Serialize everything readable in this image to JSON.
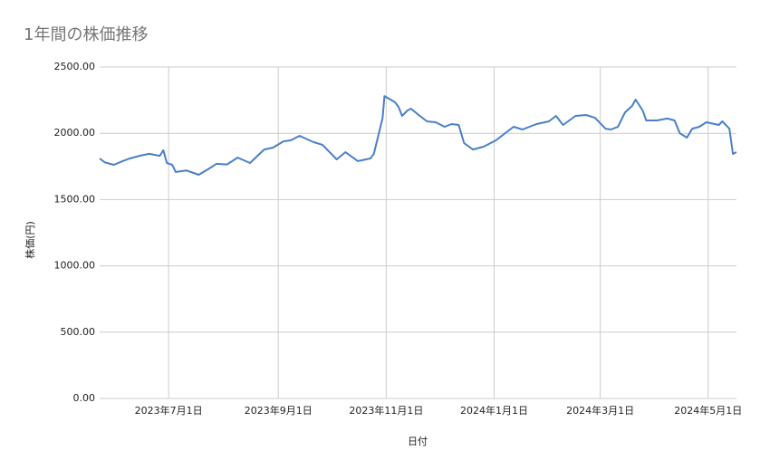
{
  "chart_data": {
    "type": "line",
    "title": "1年間の株価推移",
    "x_label": "日付",
    "y_label": "株価(円)",
    "grid": true,
    "x": [
      "2023-05-23",
      "2023-05-26",
      "2023-05-31",
      "2023-06-05",
      "2023-06-09",
      "2023-06-15",
      "2023-06-20",
      "2023-06-26",
      "2023-06-28",
      "2023-06-30",
      "2023-07-03",
      "2023-07-05",
      "2023-07-11",
      "2023-07-18",
      "2023-07-24",
      "2023-07-28",
      "2023-08-03",
      "2023-08-09",
      "2023-08-16",
      "2023-08-24",
      "2023-08-29",
      "2023-09-04",
      "2023-09-08",
      "2023-09-13",
      "2023-09-21",
      "2023-09-26",
      "2023-10-04",
      "2023-10-09",
      "2023-10-16",
      "2023-10-23",
      "2023-10-25",
      "2023-10-30",
      "2023-10-31",
      "2023-11-06",
      "2023-11-08",
      "2023-11-10",
      "2023-11-13",
      "2023-11-15",
      "2023-11-20",
      "2023-11-24",
      "2023-11-29",
      "2023-12-04",
      "2023-12-08",
      "2023-12-12",
      "2023-12-15",
      "2023-12-20",
      "2023-12-26",
      "2024-01-02",
      "2024-01-08",
      "2024-01-12",
      "2024-01-17",
      "2024-01-25",
      "2024-02-01",
      "2024-02-05",
      "2024-02-09",
      "2024-02-16",
      "2024-02-22",
      "2024-02-27",
      "2024-03-04",
      "2024-03-07",
      "2024-03-11",
      "2024-03-15",
      "2024-03-19",
      "2024-03-21",
      "2024-03-25",
      "2024-03-27",
      "2024-04-02",
      "2024-04-08",
      "2024-04-12",
      "2024-04-15",
      "2024-04-19",
      "2024-04-22",
      "2024-04-26",
      "2024-04-30",
      "2024-05-07",
      "2024-05-09",
      "2024-05-13",
      "2024-05-15",
      "2024-05-17"
    ],
    "series": [
      {
        "color": "#4a7fc9",
        "values": [
          1810,
          1780,
          1762,
          1790,
          1810,
          1831,
          1845,
          1830,
          1872,
          1776,
          1762,
          1708,
          1720,
          1687,
          1735,
          1770,
          1765,
          1817,
          1776,
          1878,
          1892,
          1940,
          1947,
          1981,
          1933,
          1913,
          1803,
          1858,
          1790,
          1810,
          1844,
          2117,
          2281,
          2234,
          2199,
          2131,
          2172,
          2186,
          2131,
          2090,
          2083,
          2049,
          2070,
          2063,
          1926,
          1878,
          1899,
          1947,
          2008,
          2049,
          2029,
          2070,
          2090,
          2131,
          2063,
          2131,
          2138,
          2117,
          2035,
          2029,
          2049,
          2158,
          2206,
          2254,
          2172,
          2097,
          2097,
          2111,
          2097,
          2001,
          1967,
          2035,
          2049,
          2083,
          2063,
          2090,
          2035,
          1844,
          1858
        ]
      }
    ],
    "xlim": [
      "2023-05-23",
      "2024-05-17"
    ],
    "xticks": [
      {
        "value": "2023-07-01",
        "label": "2023年7月1日"
      },
      {
        "value": "2023-09-01",
        "label": "2023年9月1日"
      },
      {
        "value": "2023-11-01",
        "label": "2023年11月1日"
      },
      {
        "value": "2024-01-01",
        "label": "2024年1月1日"
      },
      {
        "value": "2024-03-01",
        "label": "2024年3月1日"
      },
      {
        "value": "2024-05-01",
        "label": "2024年5月1日"
      }
    ],
    "ylim": [
      0,
      2500
    ],
    "yticks": [
      {
        "value": 0,
        "label": "0.00"
      },
      {
        "value": 500,
        "label": "500.00"
      },
      {
        "value": 1000,
        "label": "1000.00"
      },
      {
        "value": 1500,
        "label": "1500.00"
      },
      {
        "value": 2000,
        "label": "2000.00"
      },
      {
        "value": 2500,
        "label": "2500.00"
      }
    ]
  }
}
